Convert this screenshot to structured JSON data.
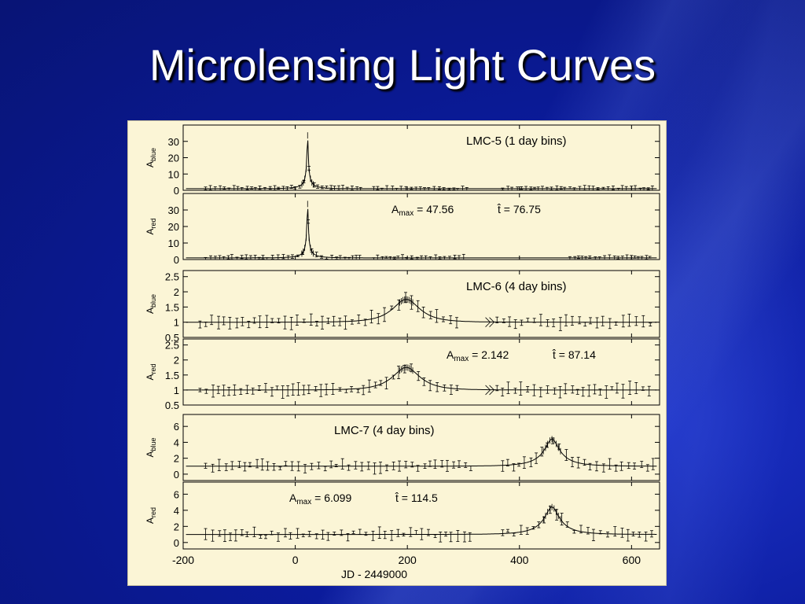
{
  "slide": {
    "title": "Microlensing Light Curves"
  },
  "chart_data": [
    {
      "type": "scatter",
      "panel": "LMC-5 blue",
      "annotation": "LMC-5 (1 day bins)",
      "ylabel": "A",
      "ylabel_sub": "blue",
      "xlim": [
        -200,
        650
      ],
      "ylim": [
        0,
        40
      ],
      "yticks": [
        "0",
        "10",
        "20",
        "30"
      ],
      "peak_x": 22,
      "amax": 47.56,
      "that": 76.75,
      "baseline": 1,
      "x_ranges": [
        [
          -160,
          120
        ],
        [
          140,
          310
        ],
        [
          370,
          640
        ]
      ],
      "series": [
        {
          "values_desc": "baseline ~1 with peak"
        }
      ]
    },
    {
      "type": "scatter",
      "panel": "LMC-5 red",
      "annotation": "",
      "amax_label": "A",
      "amax_sub": "max",
      "amax_value": "= 47.56",
      "that_label": "t",
      "that_value": "= 76.75",
      "ylabel": "A",
      "ylabel_sub": "red",
      "xlim": [
        -200,
        650
      ],
      "ylim": [
        0,
        40
      ],
      "yticks": [
        "0",
        "10",
        "20",
        "30"
      ],
      "peak_x": 22,
      "amax": 47.56,
      "that": 76.75,
      "baseline": 1,
      "x_ranges": [
        [
          -160,
          120
        ],
        [
          140,
          310
        ],
        [
          490,
          640
        ]
      ]
    },
    {
      "type": "scatter",
      "panel": "LMC-6 blue",
      "annotation": "LMC-6 (4 day bins)",
      "ylabel": "A",
      "ylabel_sub": "blue",
      "xlim": [
        -200,
        650
      ],
      "ylim": [
        0.5,
        2.7
      ],
      "yticks": [
        "0.5",
        "1",
        "1.5",
        "2",
        "2.5"
      ],
      "peak_x": 198,
      "amax": 2.142,
      "that": 87.14,
      "baseline": 1,
      "x_ranges": [
        [
          -170,
          300
        ],
        [
          360,
          640
        ]
      ]
    },
    {
      "type": "scatter",
      "panel": "LMC-6 red",
      "annotation": "",
      "amax_label": "A",
      "amax_sub": "max",
      "amax_value": "= 2.142",
      "that_label": "t",
      "that_value": "= 87.14",
      "ylabel": "A",
      "ylabel_sub": "red",
      "xlim": [
        -200,
        650
      ],
      "ylim": [
        0.5,
        2.7
      ],
      "yticks": [
        "0.5",
        "1",
        "1.5",
        "2",
        "2.5"
      ],
      "peak_x": 198,
      "amax": 2.142,
      "that": 87.14,
      "baseline": 1,
      "x_ranges": [
        [
          -170,
          300
        ],
        [
          360,
          640
        ]
      ]
    },
    {
      "type": "scatter",
      "panel": "LMC-7 blue",
      "annotation": "LMC-7 (4 day bins)",
      "ylabel": "A",
      "ylabel_sub": "blue",
      "xlim": [
        -200,
        650
      ],
      "ylim": [
        -0.8,
        7.5
      ],
      "yticks": [
        "0",
        "2",
        "4",
        "6"
      ],
      "peak_x": 458,
      "amax": 6.099,
      "that": 114.5,
      "baseline": 1,
      "x_ranges": [
        [
          -160,
          320
        ],
        [
          370,
          640
        ]
      ]
    },
    {
      "type": "scatter",
      "panel": "LMC-7 red",
      "annotation": "",
      "amax_label": "A",
      "amax_sub": "max",
      "amax_value": "= 6.099",
      "that_label": "t",
      "that_value": "= 114.5",
      "ylabel": "A",
      "ylabel_sub": "red",
      "xlim": [
        -200,
        650
      ],
      "ylim": [
        -0.8,
        7.5
      ],
      "yticks": [
        "0",
        "2",
        "4",
        "6"
      ],
      "peak_x": 458,
      "amax": 6.099,
      "that": 114.5,
      "baseline": 1,
      "x_ranges": [
        [
          -160,
          320
        ],
        [
          370,
          640
        ]
      ],
      "xticks": [
        "-200",
        "0",
        "200",
        "400",
        "600"
      ],
      "xlabel": "JD - 2449000"
    }
  ]
}
